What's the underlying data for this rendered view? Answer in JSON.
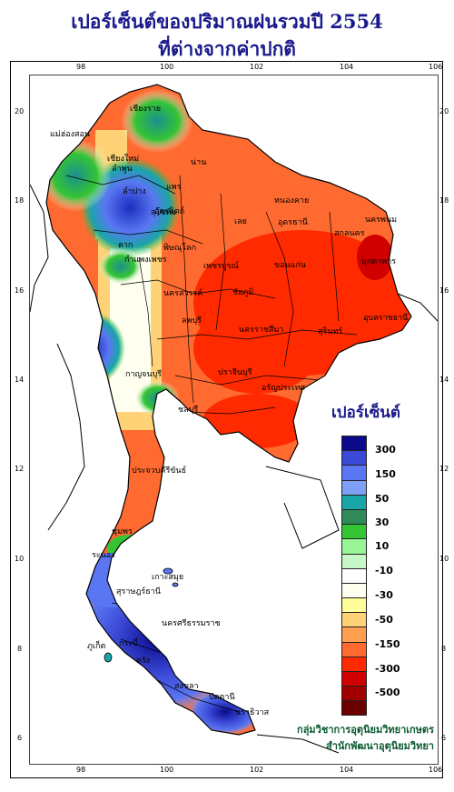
{
  "title": {
    "line1": "เปอร์เซ็นต์ของปริมาณฝนรวมปี 2554",
    "line2": "ที่ต่างจากค่าปกติ"
  },
  "axes": {
    "lon_ticks": [
      "98",
      "100",
      "102",
      "104",
      "106"
    ],
    "lat_ticks": [
      "20",
      "18",
      "16",
      "14",
      "12",
      "10",
      "8",
      "6"
    ]
  },
  "legend": {
    "title": "เปอร์เซ็นต์",
    "colors": [
      "#0a0a8a",
      "#3a49d6",
      "#5a76f2",
      "#7fa0f7",
      "#1aa6a6",
      "#2e8b57",
      "#34c434",
      "#98f598",
      "#c8f7c8",
      "#ffffff",
      "#fffff0",
      "#ffff99",
      "#ffd277",
      "#ff9e4f",
      "#ff6a30",
      "#ff2a00",
      "#d00000",
      "#a00000",
      "#6a0000"
    ],
    "labels": [
      "300",
      "150",
      "50",
      "30",
      "10",
      "-10",
      "-30",
      "-50",
      "-150",
      "-300",
      "-500"
    ]
  },
  "places": [
    {
      "name": "เชียงราย"
    },
    {
      "name": "แม่ฮ่องสอน"
    },
    {
      "name": "เชียงใหม่"
    },
    {
      "name": "ลำพูน"
    },
    {
      "name": "น่าน"
    },
    {
      "name": "แพร่"
    },
    {
      "name": "ลำปาง"
    },
    {
      "name": "อุตรดิตถ์"
    },
    {
      "name": "ตาก"
    },
    {
      "name": "หนองคาย"
    },
    {
      "name": "เลย"
    },
    {
      "name": "อุดรธานี"
    },
    {
      "name": "นครพนม"
    },
    {
      "name": "สกลนคร"
    },
    {
      "name": "ขอนแก่น"
    },
    {
      "name": "มุกดาหาร"
    },
    {
      "name": "พิษณุโลก"
    },
    {
      "name": "กำแพงเพชร"
    },
    {
      "name": "เพชรบูรณ์"
    },
    {
      "name": "ชัยภูมิ"
    },
    {
      "name": "นครสวรรค์"
    },
    {
      "name": "อุบลราชธานี"
    },
    {
      "name": "นครราชสีมา"
    },
    {
      "name": "สุรินทร์"
    },
    {
      "name": "กาญจนบุรี"
    },
    {
      "name": "ลพบุรี"
    },
    {
      "name": "ปราจีนบุรี"
    },
    {
      "name": "ชลบุรี"
    },
    {
      "name": "ประจวบคีรีขันธ์"
    },
    {
      "name": "ชุมพร"
    },
    {
      "name": "ระนอง"
    },
    {
      "name": "สุราษฎร์ธานี"
    },
    {
      "name": "ภูเก็ต"
    },
    {
      "name": "นครศรีธรรมราช"
    },
    {
      "name": "กระบี่"
    },
    {
      "name": "ตรัง"
    },
    {
      "name": "สงขลา"
    },
    {
      "name": "ปัตตานี"
    },
    {
      "name": "นราธิวาส"
    },
    {
      "name": "เกาะสมุย"
    },
    {
      "name": "สุโขทัย"
    },
    {
      "name": "อรัญประเทศ"
    }
  ],
  "credit": {
    "line1": "กลุ่มวิชาการอุตุนิยมวิทยาเกษตร",
    "line2": "สำนักพัฒนาอุตุนิยมวิทยา"
  }
}
